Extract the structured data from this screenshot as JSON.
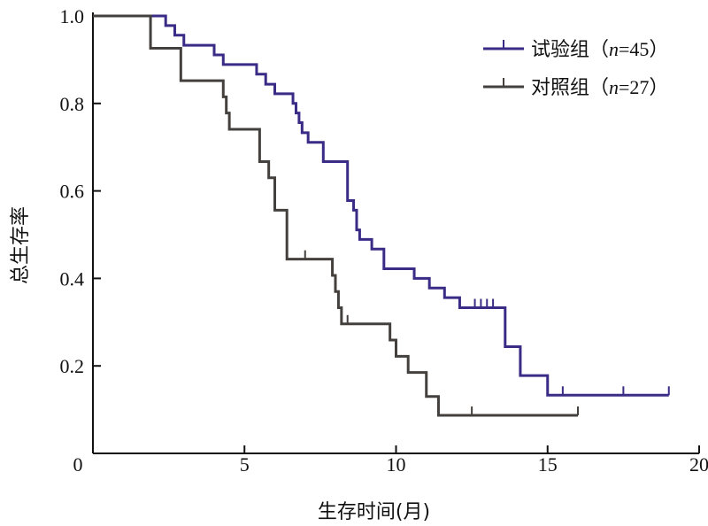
{
  "chart_data": {
    "type": "line",
    "style": "step",
    "title": "",
    "xlabel": "生存时间(月)",
    "ylabel": "总生存率",
    "xlim": [
      0,
      20
    ],
    "ylim": [
      0,
      1.0
    ],
    "x_ticks": [
      {
        "value": 0,
        "label": "0"
      },
      {
        "value": 5,
        "label": "5"
      },
      {
        "value": 10,
        "label": "10"
      },
      {
        "value": 15,
        "label": "15"
      },
      {
        "value": 20,
        "label": "20"
      }
    ],
    "y_ticks": [
      {
        "value": 0.2,
        "label": "0.2"
      },
      {
        "value": 0.4,
        "label": "0.4"
      },
      {
        "value": 0.6,
        "label": "0.6"
      },
      {
        "value": 0.8,
        "label": "0.8"
      },
      {
        "value": 1.0,
        "label": "1.0"
      }
    ],
    "grid": false,
    "legend_position": "top-right",
    "series": [
      {
        "name": "试验组",
        "n_symbol": "n",
        "n_value": "=45",
        "color": "#3a2b86",
        "x": [
          0,
          2.4,
          2.7,
          3.0,
          4.0,
          4.3,
          5.4,
          5.7,
          6.0,
          6.6,
          6.7,
          6.8,
          6.9,
          7.1,
          7.6,
          8.4,
          8.6,
          8.7,
          8.8,
          9.2,
          9.6,
          10.6,
          11.1,
          11.6,
          12.1,
          13.6,
          14.1,
          15.0,
          19.0
        ],
        "y": [
          1.0,
          0.978,
          0.956,
          0.933,
          0.911,
          0.889,
          0.867,
          0.844,
          0.822,
          0.8,
          0.778,
          0.756,
          0.733,
          0.711,
          0.667,
          0.578,
          0.556,
          0.511,
          0.489,
          0.467,
          0.422,
          0.4,
          0.378,
          0.356,
          0.333,
          0.244,
          0.178,
          0.133,
          0.133
        ],
        "censored_x": [
          9.6,
          12.6,
          12.8,
          13.0,
          13.2,
          15.5,
          17.5,
          19.0
        ],
        "censored_y": [
          0.422,
          0.333,
          0.333,
          0.333,
          0.333,
          0.133,
          0.133,
          0.133
        ]
      },
      {
        "name": "对照组",
        "n_symbol": "n",
        "n_value": "=27",
        "color": "#44403e",
        "x": [
          0,
          1.9,
          2.9,
          4.3,
          4.4,
          4.5,
          5.5,
          5.8,
          6.0,
          6.4,
          7.9,
          8.0,
          8.1,
          8.2,
          9.8,
          10.0,
          10.4,
          11.0,
          11.4,
          16.0
        ],
        "y": [
          1.0,
          0.926,
          0.852,
          0.815,
          0.778,
          0.741,
          0.667,
          0.63,
          0.556,
          0.444,
          0.407,
          0.37,
          0.333,
          0.296,
          0.259,
          0.222,
          0.185,
          0.13,
          0.087,
          0.087
        ],
        "censored_x": [
          7.0,
          8.4,
          12.5,
          16.0
        ],
        "censored_y": [
          0.444,
          0.296,
          0.087,
          0.087
        ]
      }
    ]
  }
}
